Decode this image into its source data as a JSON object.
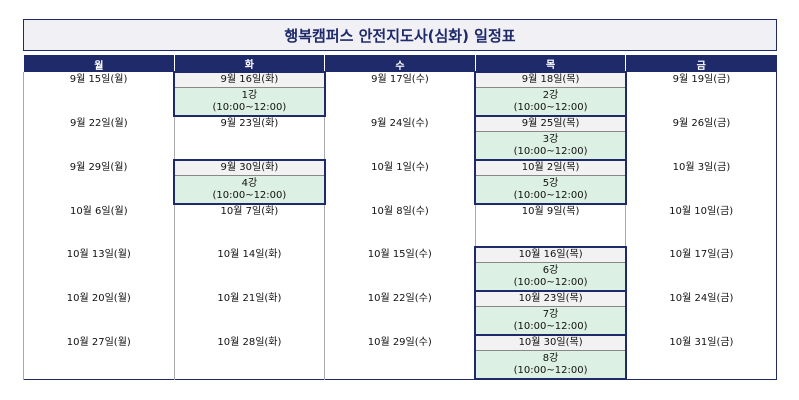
{
  "title": "행복캠퍼스 안전지도사(심화) 일정표",
  "table": {
    "headers": [
      "월",
      "화",
      "수",
      "목",
      "금"
    ],
    "weeks": [
      {
        "dates": [
          "9월 15일(월)",
          "9월 16일(화)",
          "9월 17일(수)",
          "9월 18일(목)",
          "9월 19일(금)"
        ],
        "sessions": [
          null,
          {
            "lesson": "1강",
            "time": "(10:00~12:00)"
          },
          null,
          {
            "lesson": "2강",
            "time": "(10:00~12:00)"
          },
          null
        ]
      },
      {
        "dates": [
          "9월 22일(월)",
          "9월 23일(화)",
          "9월 24일(수)",
          "9월 25일(목)",
          "9월 26일(금)"
        ],
        "sessions": [
          null,
          null,
          null,
          {
            "lesson": "3강",
            "time": "(10:00~12:00)"
          },
          null
        ]
      },
      {
        "dates": [
          "9월 29일(월)",
          "9월 30일(화)",
          "10월 1일(수)",
          "10월 2일(목)",
          "10월 3일(금)"
        ],
        "sessions": [
          null,
          {
            "lesson": "4강",
            "time": "(10:00~12:00)"
          },
          null,
          {
            "lesson": "5강",
            "time": "(10:00~12:00)"
          },
          null
        ]
      },
      {
        "dates": [
          "10월 6일(월)",
          "10월 7일(화)",
          "10월 8일(수)",
          "10월 9일(목)",
          "10월 10일(금)"
        ],
        "sessions": [
          null,
          null,
          null,
          null,
          null
        ]
      },
      {
        "dates": [
          "10월 13일(월)",
          "10월 14일(화)",
          "10월 15일(수)",
          "10월 16일(목)",
          "10월 17일(금)"
        ],
        "sessions": [
          null,
          null,
          null,
          {
            "lesson": "6강",
            "time": "(10:00~12:00)"
          },
          null
        ]
      },
      {
        "dates": [
          "10월 20일(월)",
          "10월 21일(화)",
          "10월 22일(수)",
          "10월 23일(목)",
          "10월 24일(금)"
        ],
        "sessions": [
          null,
          null,
          null,
          {
            "lesson": "7강",
            "time": "(10:00~12:00)"
          },
          null
        ]
      },
      {
        "dates": [
          "10월 27일(월)",
          "10월 28일(화)",
          "10월 29일(수)",
          "10월 30일(목)",
          "10월 31일(금)"
        ],
        "sessions": [
          null,
          null,
          null,
          {
            "lesson": "8강",
            "time": "(10:00~12:00)"
          },
          null
        ]
      }
    ]
  }
}
